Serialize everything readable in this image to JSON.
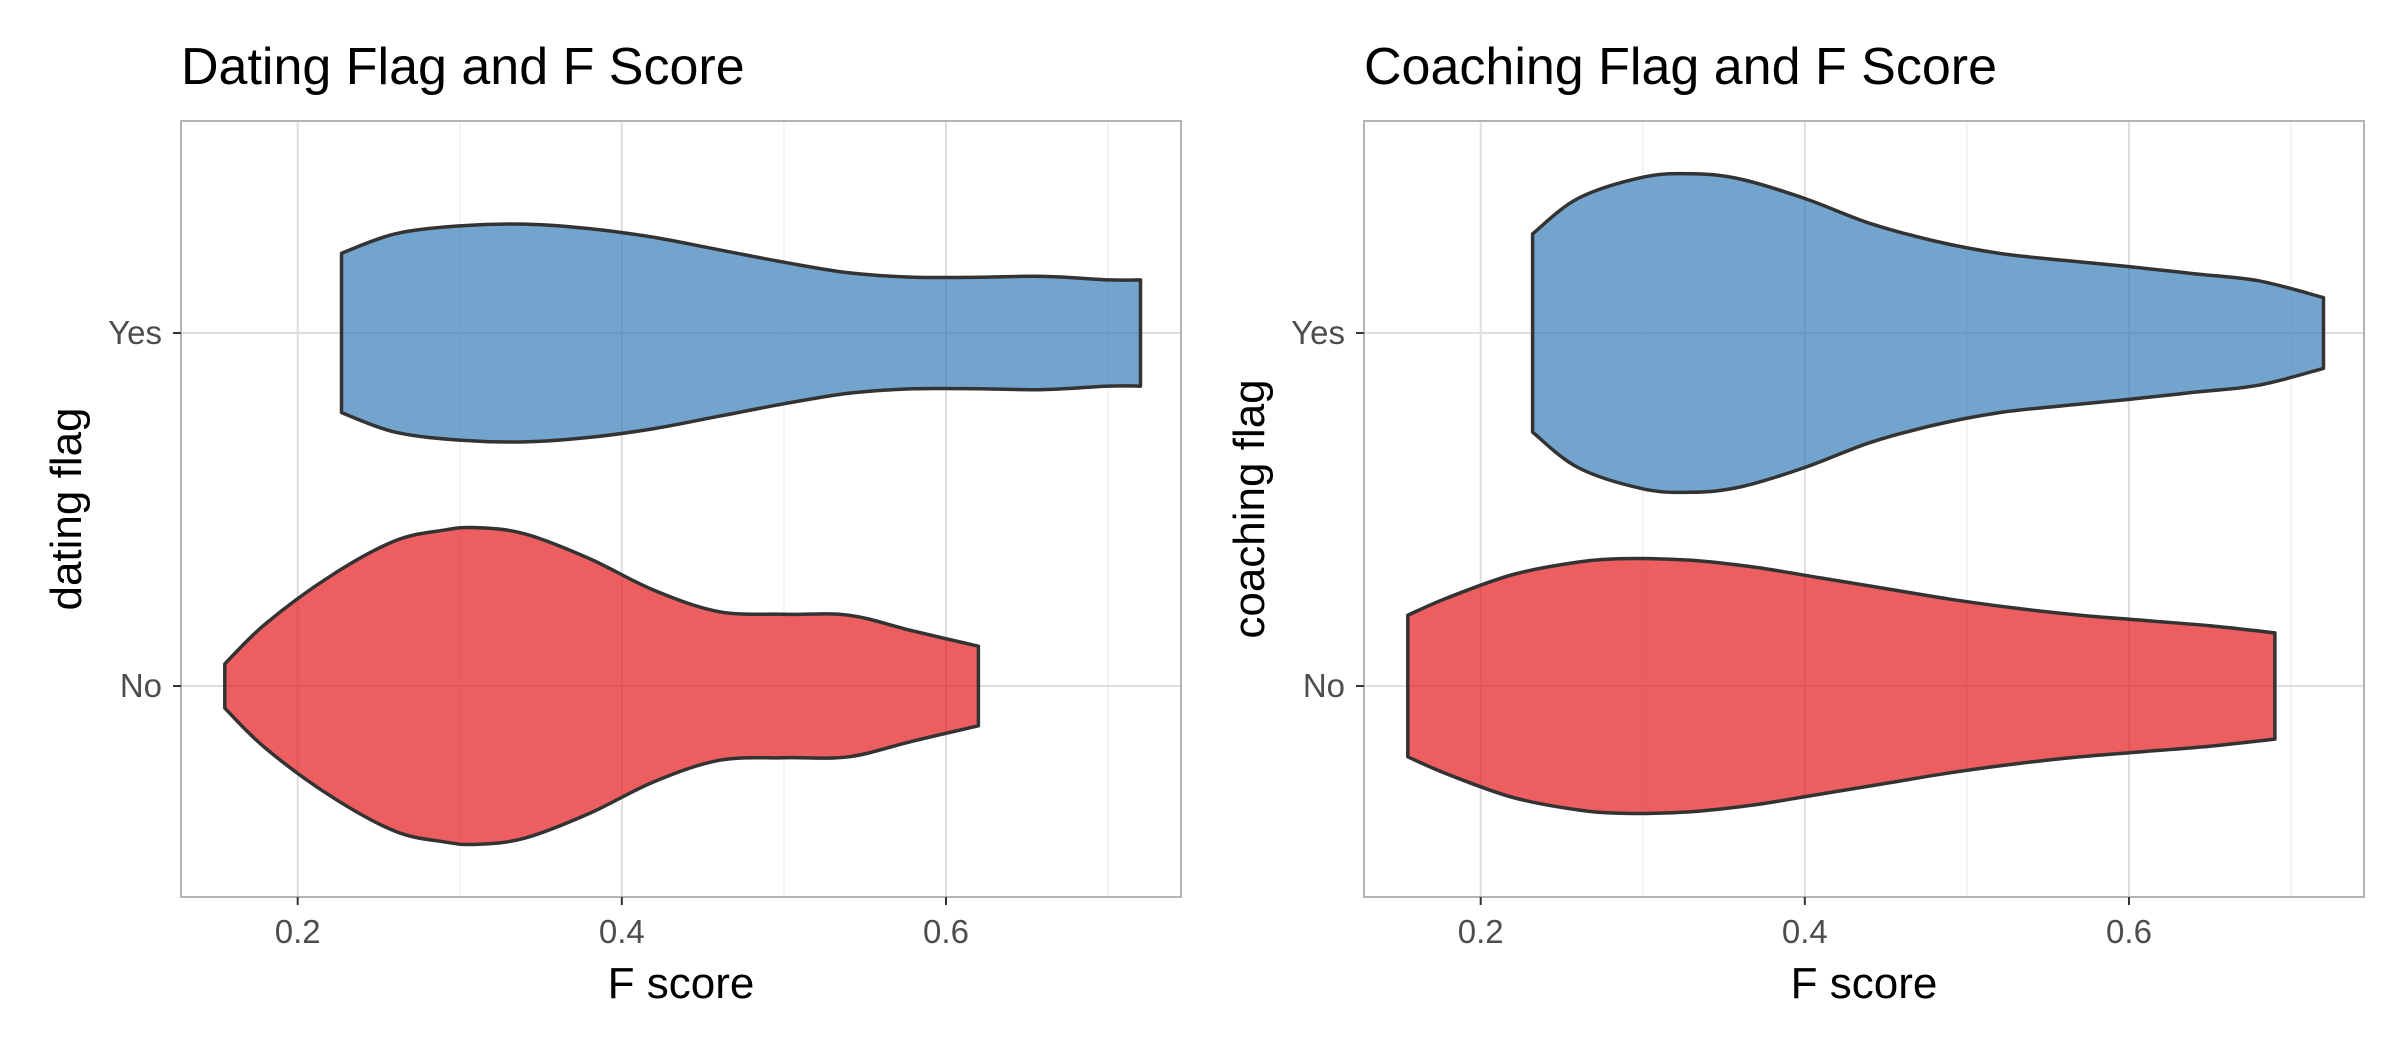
{
  "chart_data": [
    {
      "type": "violin",
      "title": "Dating Flag and F Score",
      "xlabel": "F score",
      "ylabel": "dating flag",
      "xlim": [
        0.128,
        0.745
      ],
      "xticks": [
        0.2,
        0.4,
        0.6
      ],
      "xtick_labels": [
        "0.2",
        "0.4",
        "0.6"
      ],
      "categories": [
        "No",
        "Yes"
      ],
      "grid": true,
      "series": [
        {
          "category": "Yes",
          "color": "#377eb8",
          "range": [
            0.227,
            0.72
          ],
          "density": [
            [
              0.227,
              0.45
            ],
            [
              0.26,
              0.56
            ],
            [
              0.3,
              0.605
            ],
            [
              0.34,
              0.615
            ],
            [
              0.38,
              0.59
            ],
            [
              0.42,
              0.54
            ],
            [
              0.46,
              0.47
            ],
            [
              0.5,
              0.4
            ],
            [
              0.54,
              0.34
            ],
            [
              0.58,
              0.315
            ],
            [
              0.62,
              0.315
            ],
            [
              0.66,
              0.32
            ],
            [
              0.7,
              0.3
            ],
            [
              0.72,
              0.3
            ]
          ]
        },
        {
          "category": "No",
          "color": "#e41a1c",
          "range": [
            0.155,
            0.62
          ],
          "density": [
            [
              0.155,
              0.125
            ],
            [
              0.18,
              0.35
            ],
            [
              0.22,
              0.62
            ],
            [
              0.26,
              0.82
            ],
            [
              0.29,
              0.88
            ],
            [
              0.31,
              0.895
            ],
            [
              0.34,
              0.86
            ],
            [
              0.38,
              0.72
            ],
            [
              0.42,
              0.54
            ],
            [
              0.46,
              0.42
            ],
            [
              0.5,
              0.405
            ],
            [
              0.54,
              0.4
            ],
            [
              0.58,
              0.31
            ],
            [
              0.62,
              0.225
            ]
          ]
        }
      ]
    },
    {
      "type": "violin",
      "title": "Coaching Flag and F Score",
      "xlabel": "F score",
      "ylabel": "coaching flag",
      "xlim": [
        0.128,
        0.745
      ],
      "xticks": [
        0.2,
        0.4,
        0.6
      ],
      "xtick_labels": [
        "0.2",
        "0.4",
        "0.6"
      ],
      "categories": [
        "No",
        "Yes"
      ],
      "grid": true,
      "series": [
        {
          "category": "Yes",
          "color": "#377eb8",
          "range": [
            0.232,
            0.72
          ],
          "density": [
            [
              0.232,
              0.56
            ],
            [
              0.26,
              0.76
            ],
            [
              0.3,
              0.88
            ],
            [
              0.33,
              0.9
            ],
            [
              0.36,
              0.87
            ],
            [
              0.4,
              0.76
            ],
            [
              0.44,
              0.62
            ],
            [
              0.48,
              0.52
            ],
            [
              0.52,
              0.45
            ],
            [
              0.56,
              0.41
            ],
            [
              0.6,
              0.375
            ],
            [
              0.64,
              0.335
            ],
            [
              0.68,
              0.295
            ],
            [
              0.72,
              0.2
            ]
          ]
        },
        {
          "category": "No",
          "color": "#e41a1c",
          "range": [
            0.155,
            0.69
          ],
          "density": [
            [
              0.155,
              0.4
            ],
            [
              0.18,
              0.5
            ],
            [
              0.22,
              0.63
            ],
            [
              0.26,
              0.7
            ],
            [
              0.29,
              0.72
            ],
            [
              0.33,
              0.71
            ],
            [
              0.37,
              0.67
            ],
            [
              0.41,
              0.61
            ],
            [
              0.45,
              0.55
            ],
            [
              0.49,
              0.49
            ],
            [
              0.53,
              0.44
            ],
            [
              0.57,
              0.4
            ],
            [
              0.61,
              0.37
            ],
            [
              0.65,
              0.34
            ],
            [
              0.69,
              0.3
            ]
          ]
        }
      ]
    }
  ]
}
